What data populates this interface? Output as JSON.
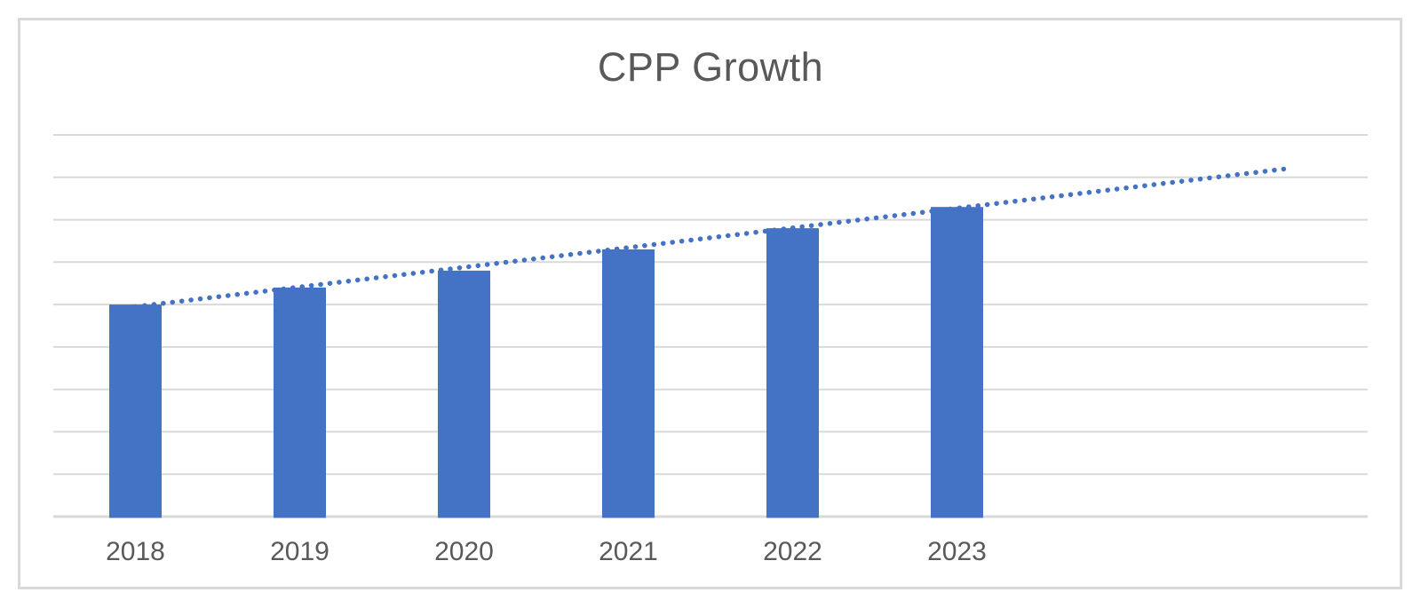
{
  "chart_data": {
    "type": "bar",
    "title": "CPP Growth",
    "categories": [
      "2018",
      "2019",
      "2020",
      "2021",
      "2022",
      "2023"
    ],
    "values": [
      5.0,
      5.4,
      5.8,
      6.3,
      6.8,
      7.3
    ],
    "series": [
      {
        "name": "CPP",
        "values": [
          5.0,
          5.4,
          5.8,
          6.3,
          6.8,
          7.3
        ]
      }
    ],
    "trendline": {
      "type": "linear",
      "style": "dotted",
      "start_value": 4.95,
      "end_value": 8.2,
      "forecast_periods": 2
    },
    "xlabel": "",
    "ylabel": "",
    "ylim": [
      0,
      9
    ],
    "gridline_count": 9,
    "grid": "horizontal",
    "y_axis_labels_visible": false,
    "legend_position": "none",
    "value_unit_note": "y-axis shows no tick labels; values estimated in gridline units (1 unit per gridline, axis bottom = 0)",
    "colors": {
      "bar": "#4472c4",
      "trendline": "#4472c4",
      "gridline": "#d9d9d9",
      "axis_line": "#d9d9d9",
      "text": "#595959",
      "frame_border": "#d9d9d9",
      "background": "#ffffff"
    }
  }
}
